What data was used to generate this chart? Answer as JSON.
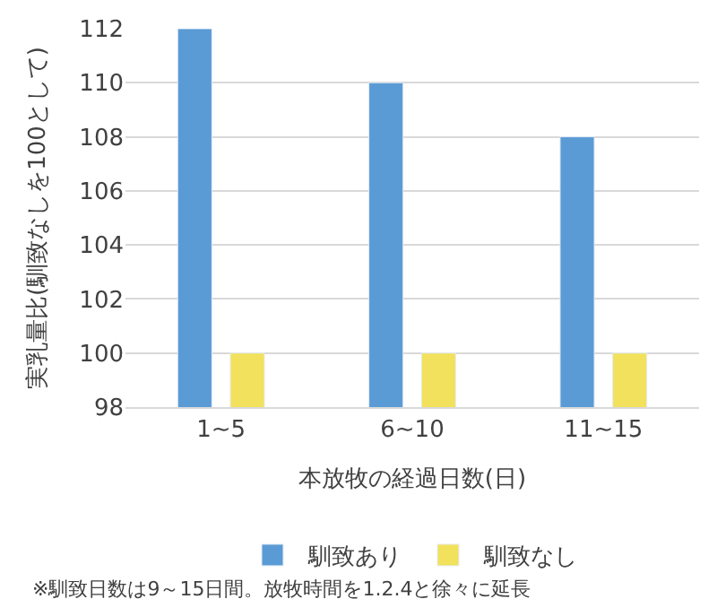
{
  "chart_data": {
    "type": "bar",
    "ylabel": "実乳量比(馴致なしを100として)",
    "xlabel": "本放牧の経過日数(日)",
    "categories": [
      "1~5",
      "6~10",
      "11~15"
    ],
    "series": [
      {
        "name": "馴致あり",
        "color": "#5b9bd5",
        "values": [
          112,
          110,
          108
        ]
      },
      {
        "name": "馴致なし",
        "color": "#f2e15c",
        "values": [
          100,
          100,
          100
        ]
      }
    ],
    "ylim": [
      98,
      112
    ],
    "yticks": [
      98,
      100,
      102,
      104,
      106,
      108,
      110,
      112
    ],
    "grid": "y",
    "legend": "bottom",
    "annotations": [
      "※馴致日数は9～15日間。放牧時間を1.2.4と徐々に延長"
    ]
  }
}
